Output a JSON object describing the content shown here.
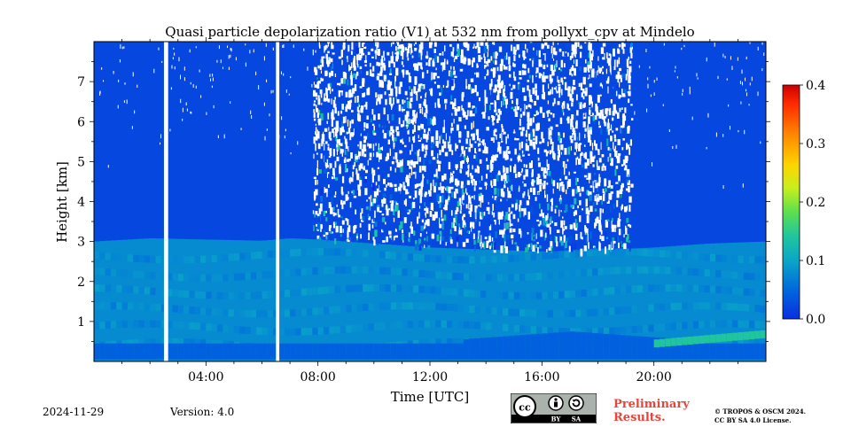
{
  "chart_data": {
    "type": "heatmap",
    "title": "Quasi particle depolarization ratio (V1) at 532 nm from pollyxt_cpv at Mindelo",
    "xlabel": "Time [UTC]",
    "ylabel": "Height [km]",
    "xlim_hours": [
      0,
      24
    ],
    "ylim_km": [
      0,
      8
    ],
    "x_ticks": [
      {
        "value": 4,
        "label": "04:00"
      },
      {
        "value": 8,
        "label": "08:00"
      },
      {
        "value": 12,
        "label": "12:00"
      },
      {
        "value": 16,
        "label": "16:00"
      },
      {
        "value": 20,
        "label": "20:00"
      }
    ],
    "y_ticks": [
      {
        "value": 1,
        "label": "1"
      },
      {
        "value": 2,
        "label": "2"
      },
      {
        "value": 3,
        "label": "3"
      },
      {
        "value": 4,
        "label": "4"
      },
      {
        "value": 5,
        "label": "5"
      },
      {
        "value": 6,
        "label": "6"
      },
      {
        "value": 7,
        "label": "7"
      }
    ],
    "colorbar": {
      "range": [
        0.0,
        0.4
      ],
      "ticks": [
        {
          "value": 0.0,
          "label": "0.0"
        },
        {
          "value": 0.1,
          "label": "0.1"
        },
        {
          "value": 0.2,
          "label": "0.2"
        },
        {
          "value": 0.3,
          "label": "0.3"
        },
        {
          "value": 0.4,
          "label": "0.4"
        }
      ],
      "colormap": [
        "#0a2ee0",
        "#0066dd",
        "#0aa6c8",
        "#22c79a",
        "#5fe04c",
        "#c8ee1e",
        "#ffd400",
        "#ff8000",
        "#ff2a00",
        "#cc0000"
      ]
    },
    "layers": {
      "background_value": 0.02,
      "aerosol_top_km": [
        {
          "t": 0,
          "h": 3.0
        },
        {
          "t": 2,
          "h": 3.08
        },
        {
          "t": 4,
          "h": 3.05
        },
        {
          "t": 6,
          "h": 3.02
        },
        {
          "t": 7,
          "h": 3.08
        },
        {
          "t": 8,
          "h": 3.05
        },
        {
          "t": 10,
          "h": 2.95
        },
        {
          "t": 12,
          "h": 2.85
        },
        {
          "t": 14,
          "h": 2.8
        },
        {
          "t": 16,
          "h": 2.75
        },
        {
          "t": 18,
          "h": 2.78
        },
        {
          "t": 20,
          "h": 2.85
        },
        {
          "t": 22,
          "h": 2.95
        },
        {
          "t": 24,
          "h": 3.0
        }
      ],
      "aerosol_value": 0.07,
      "surface_layer_value": 0.04,
      "noise_window_hours": [
        7.8,
        19.2
      ],
      "gaps_hours": [
        [
          2.5,
          2.65
        ],
        [
          6.5,
          6.62
        ]
      ],
      "afternoon_enhanced_value": 0.13
    }
  },
  "footer": {
    "date": "2024-11-29",
    "version": "Version: 4.0",
    "preliminary_line1": "Preliminary",
    "preliminary_line2": "Results.",
    "copyright_line1": "© TROPOS & OSCM 2024.",
    "copyright_line2": "CC BY SA 4.0 License.",
    "license_labels": [
      "cc",
      "BY",
      "SA"
    ]
  }
}
